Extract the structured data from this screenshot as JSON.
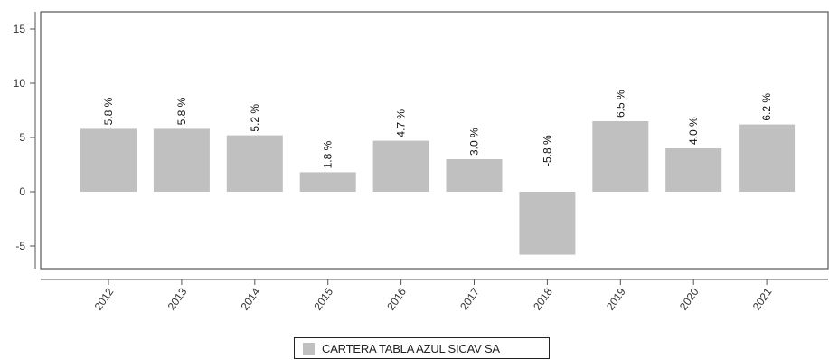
{
  "chart_data": {
    "type": "bar",
    "categories": [
      "2012",
      "2013",
      "2014",
      "2015",
      "2016",
      "2017",
      "2018",
      "2019",
      "2020",
      "2021"
    ],
    "series": [
      {
        "name": "CARTERA TABLA AZUL SICAV SA",
        "values": [
          5.8,
          5.8,
          5.2,
          1.8,
          4.7,
          3.0,
          -5.8,
          6.5,
          4.0,
          6.2
        ],
        "labels": [
          "5.8 %",
          "5.8 %",
          "5.2 %",
          "1.8 %",
          "4.7 %",
          "3.0 %",
          "-5.8 %",
          "6.5 %",
          "4.0 %",
          "6.2 %"
        ]
      }
    ],
    "y_ticks": [
      "15",
      "10",
      "5",
      "0",
      "-5"
    ],
    "ylim": [
      -7,
      16.5
    ],
    "bar_color": "#c0c0c0",
    "grid": false,
    "legend_position": "bottom-center"
  }
}
